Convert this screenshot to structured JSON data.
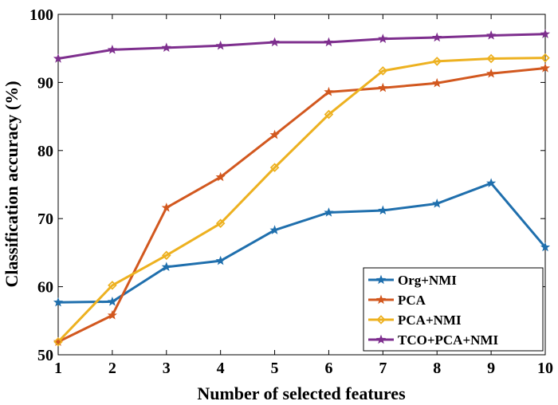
{
  "chart_data": {
    "type": "line",
    "xlabel": "Number of selected features",
    "ylabel": "Classification accuracy (%)",
    "xlim": [
      1,
      10
    ],
    "ylim": [
      50,
      100
    ],
    "xticks": [
      1,
      2,
      3,
      4,
      5,
      6,
      7,
      8,
      9,
      10
    ],
    "yticks": [
      50,
      60,
      70,
      80,
      90,
      100
    ],
    "grid": false,
    "legend_position": "bottom-right",
    "x": [
      1,
      2,
      3,
      4,
      5,
      6,
      7,
      8,
      9,
      10
    ],
    "series": [
      {
        "name": "Org+NMI",
        "color": "#1f6fad",
        "marker": "star",
        "values": [
          57.7,
          57.8,
          62.9,
          63.8,
          68.3,
          70.9,
          71.2,
          72.2,
          75.2,
          65.8
        ]
      },
      {
        "name": "PCA",
        "color": "#d2581f",
        "marker": "star",
        "values": [
          51.9,
          55.8,
          71.6,
          76.1,
          82.3,
          88.6,
          89.2,
          89.9,
          91.3,
          92.1
        ]
      },
      {
        "name": "PCA+NMI",
        "color": "#edb120",
        "marker": "diamond",
        "values": [
          51.9,
          60.2,
          64.6,
          69.3,
          77.5,
          85.3,
          91.7,
          93.1,
          93.5,
          93.6
        ]
      },
      {
        "name": "TCO+PCA+NMI",
        "color": "#7e2f8e",
        "marker": "star",
        "values": [
          93.5,
          94.8,
          95.1,
          95.4,
          95.9,
          95.9,
          96.4,
          96.6,
          96.9,
          97.1
        ]
      }
    ]
  }
}
